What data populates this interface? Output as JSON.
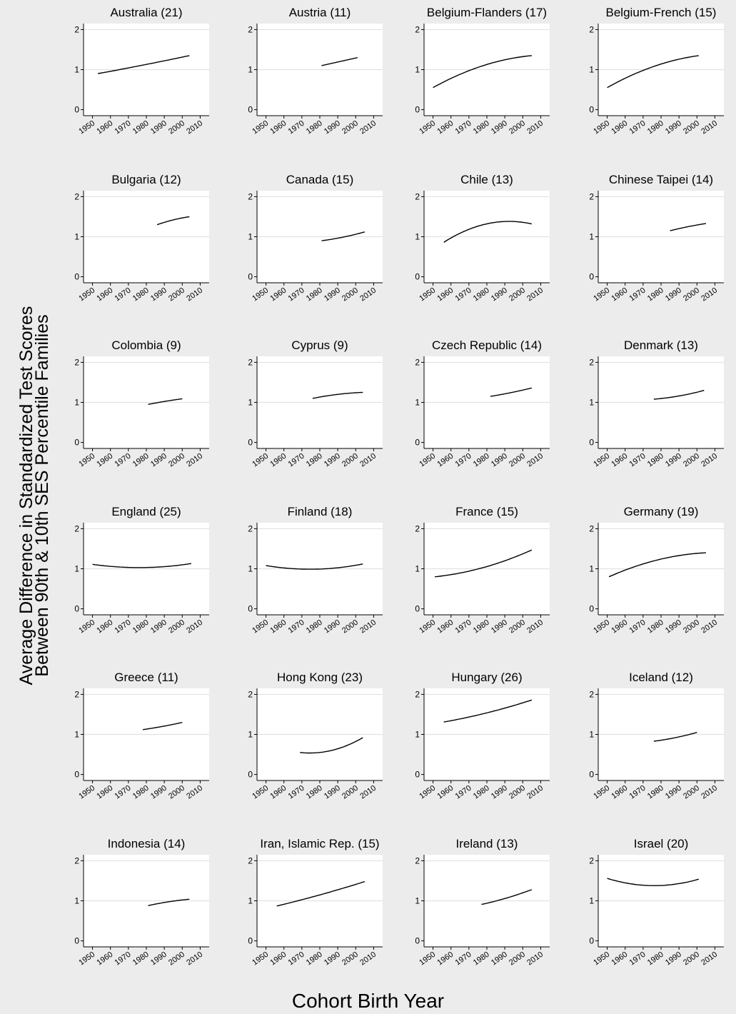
{
  "figure": {
    "ylabel_line1": "Average Difference in Standardized Test Scores",
    "ylabel_line2": "Between 90th & 10th SES Percentile Families",
    "xlabel": "Cohort Birth Year"
  },
  "chart_data": {
    "type": "line",
    "layout": "small-multiples 6x4",
    "xlim": [
      1945,
      2015
    ],
    "ylim": [
      -0.15,
      2.15
    ],
    "xticks": [
      1950,
      1960,
      1970,
      1980,
      1990,
      2000,
      2010
    ],
    "yticks": [
      0,
      1,
      2
    ],
    "grid": "horizontal at y=1 and y=2",
    "xlabel": "Cohort Birth Year",
    "ylabel": "Average Difference in Standardized Test Scores Between 90th & 10th SES Percentile Families",
    "panels": [
      {
        "title": "Australia (21)",
        "x": [
          1953,
          1980,
          2004
        ],
        "y": [
          0.9,
          1.13,
          1.35
        ]
      },
      {
        "title": "Austria (11)",
        "x": [
          1981,
          1991,
          2001
        ],
        "y": [
          1.1,
          1.2,
          1.3
        ]
      },
      {
        "title": "Belgium-Flanders (17)",
        "x": [
          1950,
          1978,
          2005
        ],
        "y": [
          0.55,
          1.1,
          1.35
        ]
      },
      {
        "title": "Belgium-French (15)",
        "x": [
          1950,
          1976,
          2001
        ],
        "y": [
          0.55,
          1.08,
          1.35
        ]
      },
      {
        "title": "Bulgaria (12)",
        "x": [
          1986,
          1995,
          2004
        ],
        "y": [
          1.3,
          1.42,
          1.5
        ]
      },
      {
        "title": "Canada (15)",
        "x": [
          1981,
          1993,
          2005
        ],
        "y": [
          0.9,
          0.99,
          1.12
        ]
      },
      {
        "title": "Chile (13)",
        "x": [
          1956,
          1990,
          2005
        ],
        "y": [
          0.86,
          1.38,
          1.32
        ]
      },
      {
        "title": "Chinese Taipei (14)",
        "x": [
          1985,
          1995,
          2005
        ],
        "y": [
          1.15,
          1.25,
          1.33
        ]
      },
      {
        "title": "Colombia (9)",
        "x": [
          1981,
          1991,
          2000
        ],
        "y": [
          0.95,
          1.03,
          1.09
        ]
      },
      {
        "title": "Cyprus (9)",
        "x": [
          1976,
          1990,
          2004
        ],
        "y": [
          1.1,
          1.2,
          1.25
        ]
      },
      {
        "title": "Czech Republic (14)",
        "x": [
          1982,
          1993,
          2005
        ],
        "y": [
          1.15,
          1.24,
          1.36
        ]
      },
      {
        "title": "Denmark (13)",
        "x": [
          1976,
          1990,
          2004
        ],
        "y": [
          1.08,
          1.16,
          1.3
        ]
      },
      {
        "title": "England (25)",
        "x": [
          1950,
          1978,
          2005
        ],
        "y": [
          1.11,
          1.03,
          1.13
        ]
      },
      {
        "title": "Finland (18)",
        "x": [
          1950,
          1977,
          2004
        ],
        "y": [
          1.08,
          0.99,
          1.12
        ]
      },
      {
        "title": "France (15)",
        "x": [
          1951,
          1978,
          2005
        ],
        "y": [
          0.8,
          1.03,
          1.47
        ]
      },
      {
        "title": "Germany (19)",
        "x": [
          1951,
          1978,
          2005
        ],
        "y": [
          0.8,
          1.22,
          1.4
        ]
      },
      {
        "title": "Greece (11)",
        "x": [
          1978,
          1989,
          2000
        ],
        "y": [
          1.12,
          1.2,
          1.3
        ]
      },
      {
        "title": "Hong Kong (23)",
        "x": [
          1969,
          1980,
          2004
        ],
        "y": [
          0.55,
          0.55,
          0.92
        ]
      },
      {
        "title": "Hungary (26)",
        "x": [
          1956,
          1981,
          2005
        ],
        "y": [
          1.31,
          1.55,
          1.86
        ]
      },
      {
        "title": "Iceland (12)",
        "x": [
          1976,
          1988,
          2000
        ],
        "y": [
          0.83,
          0.92,
          1.05
        ]
      },
      {
        "title": "Indonesia (14)",
        "x": [
          1981,
          1993,
          2004
        ],
        "y": [
          0.88,
          0.98,
          1.04
        ]
      },
      {
        "title": "Iran, Islamic Rep. (15)",
        "x": [
          1956,
          1981,
          2005
        ],
        "y": [
          0.87,
          1.16,
          1.48
        ]
      },
      {
        "title": "Ireland (13)",
        "x": [
          1977,
          1991,
          2005
        ],
        "y": [
          0.91,
          1.07,
          1.28
        ]
      },
      {
        "title": "Israel (20)",
        "x": [
          1950,
          1978,
          2001
        ],
        "y": [
          1.56,
          1.38,
          1.54
        ]
      }
    ]
  }
}
